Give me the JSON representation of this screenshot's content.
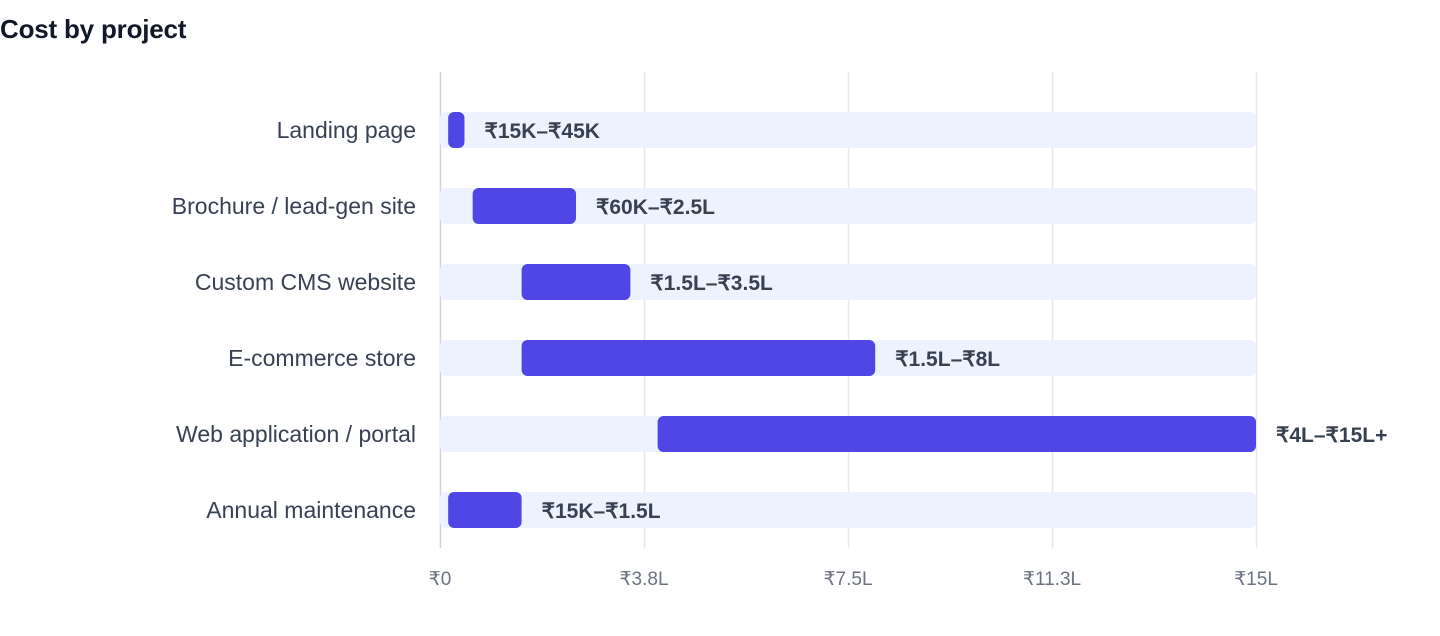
{
  "chart_data": {
    "type": "bar",
    "orientation": "horizontal",
    "subtype": "range",
    "title": "Cost by project",
    "xlabel": "",
    "ylabel": "",
    "xlim": [
      0,
      15
    ],
    "unit": "lakh INR",
    "grid": true,
    "legend": "none",
    "categories": [
      "Landing page",
      "Brochure / lead-gen site",
      "Custom CMS website",
      "E-commerce store",
      "Web application / portal",
      "Annual maintenance"
    ],
    "ranges": [
      [
        0.15,
        0.45
      ],
      [
        0.6,
        2.5
      ],
      [
        1.5,
        3.5
      ],
      [
        1.5,
        8
      ],
      [
        4,
        15
      ],
      [
        0.15,
        1.5
      ]
    ],
    "data_labels": [
      "₹15K–₹45K",
      "₹60K–₹2.5L",
      "₹1.5L–₹3.5L",
      "₹1.5L–₹8L",
      "₹4L–₹15L+",
      "₹15K–₹1.5L"
    ],
    "x_ticks": [
      0,
      3.75,
      7.5,
      11.25,
      15
    ],
    "x_tick_labels": [
      "₹0",
      "₹3.8L",
      "₹7.5L",
      "₹11.3L",
      "₹15L"
    ],
    "colors": {
      "bar": "#4f46e5",
      "track": "#eef2fe",
      "grid": "#e5e7eb",
      "axis": "#d1d5db"
    }
  }
}
